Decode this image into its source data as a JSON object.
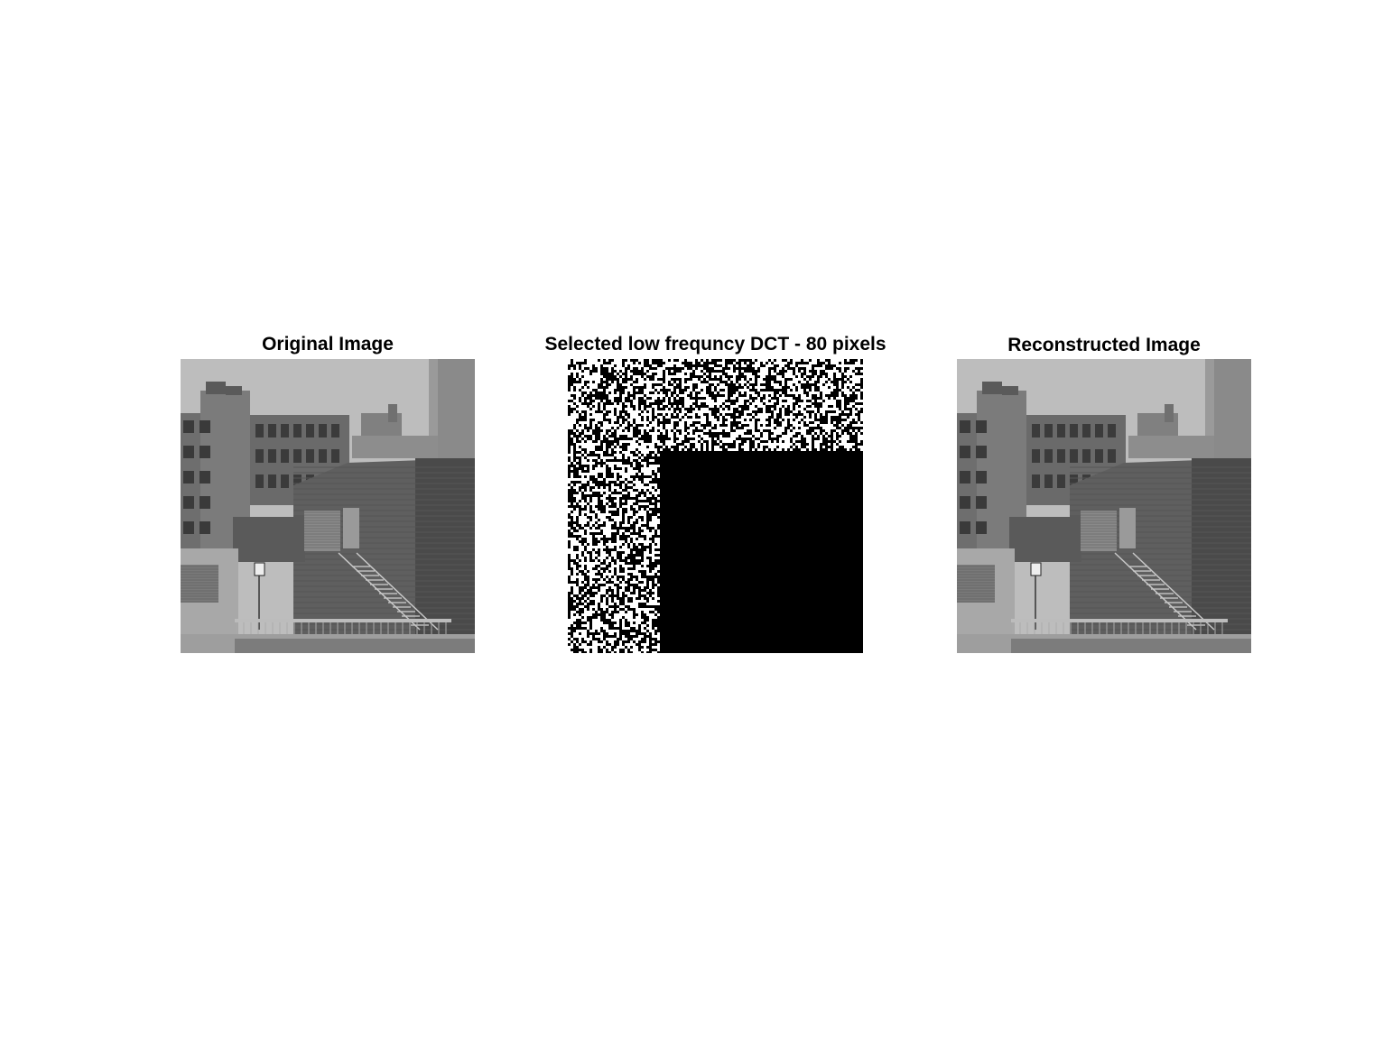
{
  "panels": [
    {
      "title": "Original Image",
      "content": "grayscale photo of brick buildings with an external staircase"
    },
    {
      "title": "Selected low frequncy DCT - 80 pixels",
      "content": "DCT coefficient mask: noisy L-shaped region, black lower-right block"
    },
    {
      "title": "Reconstructed Image",
      "content": "grayscale reconstruction of the same building photo"
    }
  ],
  "colors": {
    "background": "#ffffff",
    "mask_black": "#000000"
  }
}
